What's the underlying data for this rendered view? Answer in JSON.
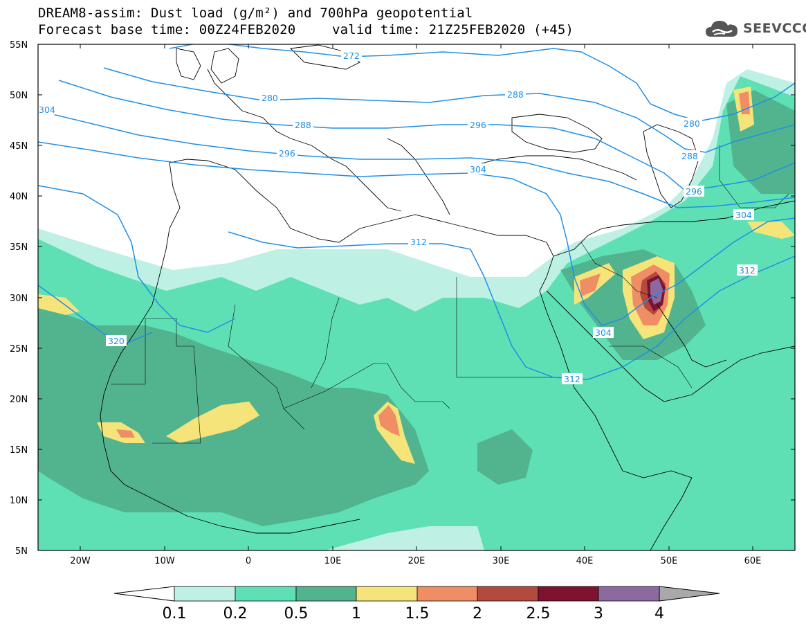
{
  "header": {
    "title": "DREAM8-assim: Dust load (g/m²) and 700hPa geopotential",
    "base_time": "Forecast base time: 00Z24FEB2020",
    "valid_time": "valid time: 21Z25FEB2020 (+45)"
  },
  "logo": {
    "text": "SEEVCCC",
    "icon": "cloud-icon"
  },
  "map": {
    "lat_labels": [
      "55N",
      "50N",
      "45N",
      "40N",
      "35N",
      "30N",
      "25N",
      "20N",
      "15N",
      "10N",
      "5N"
    ],
    "lon_labels": [
      "20W",
      "10W",
      "0",
      "10E",
      "20E",
      "30E",
      "40E",
      "50E",
      "60E"
    ],
    "contour_labels": [
      "272",
      "280",
      "288",
      "288",
      "296",
      "296",
      "304",
      "304",
      "304",
      "312",
      "312",
      "312",
      "320",
      "280",
      "288",
      "296",
      "304"
    ],
    "contour_color": "#1e8fe6"
  },
  "legend": {
    "levels": [
      "0.1",
      "0.2",
      "0.5",
      "1",
      "1.5",
      "2",
      "2.5",
      "3",
      "4"
    ],
    "colors": [
      "#bff0e4",
      "#5fe0b4",
      "#52b48e",
      "#f5e47a",
      "#ef8e64",
      "#b24a3e",
      "#7e1230",
      "#8c6aa0",
      "#a9a9a9"
    ]
  }
}
